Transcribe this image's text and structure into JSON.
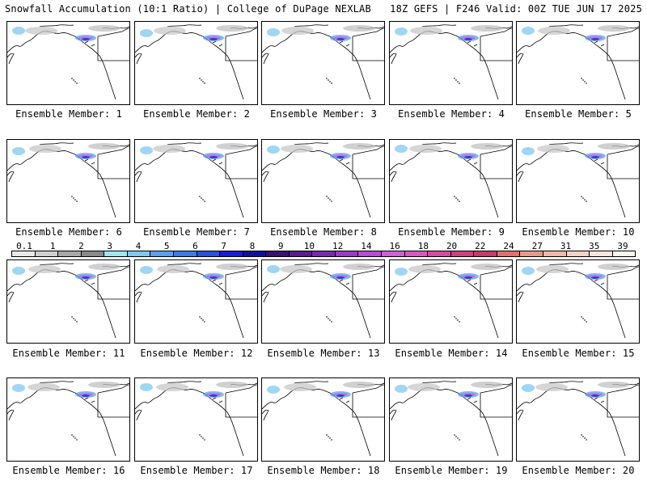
{
  "header": {
    "title_left": "Snowfall Accumulation (10:1 Ratio) | College of DuPage NEXLAB",
    "title_right": "18Z GEFS | F246 Valid: 00Z TUE JUN 17 2025"
  },
  "panels": [
    {
      "label": "Ensemble Member: 1"
    },
    {
      "label": "Ensemble Member: 2"
    },
    {
      "label": "Ensemble Member: 3"
    },
    {
      "label": "Ensemble Member: 4"
    },
    {
      "label": "Ensemble Member: 5"
    },
    {
      "label": "Ensemble Member: 6"
    },
    {
      "label": "Ensemble Member: 7"
    },
    {
      "label": "Ensemble Member: 8"
    },
    {
      "label": "Ensemble Member: 9"
    },
    {
      "label": "Ensemble Member: 10"
    },
    {
      "label": "Ensemble Member: 11"
    },
    {
      "label": "Ensemble Member: 12"
    },
    {
      "label": "Ensemble Member: 13"
    },
    {
      "label": "Ensemble Member: 14"
    },
    {
      "label": "Ensemble Member: 15"
    },
    {
      "label": "Ensemble Member: 16"
    },
    {
      "label": "Ensemble Member: 17"
    },
    {
      "label": "Ensemble Member: 18"
    },
    {
      "label": "Ensemble Member: 19"
    },
    {
      "label": "Ensemble Member: 20"
    }
  ],
  "colorbar": {
    "labels": [
      "0.1",
      "1",
      "2",
      "3",
      "4",
      "5",
      "6",
      "7",
      "8",
      "9",
      "10",
      "12",
      "14",
      "16",
      "18",
      "20",
      "22",
      "24",
      "27",
      "31",
      "35",
      "39"
    ],
    "colors": [
      "#e8e8e8",
      "#cfcfcf",
      "#a8a8a8",
      "#8a8a8a",
      "#9ee6f0",
      "#7fc8f0",
      "#5aa0ee",
      "#3c7ae8",
      "#2a52e0",
      "#1a1adc",
      "#1010a0",
      "#3a1070",
      "#5a1a90",
      "#7a2ab0",
      "#9a3ac8",
      "#b84ad8",
      "#d060d8",
      "#d858c0",
      "#d84aa0",
      "#d04080",
      "#c83a68",
      "#e07070",
      "#e89a8a",
      "#f0b8a8",
      "#f6d2c4",
      "#fae6dc",
      "#fdf4ee"
    ]
  }
}
